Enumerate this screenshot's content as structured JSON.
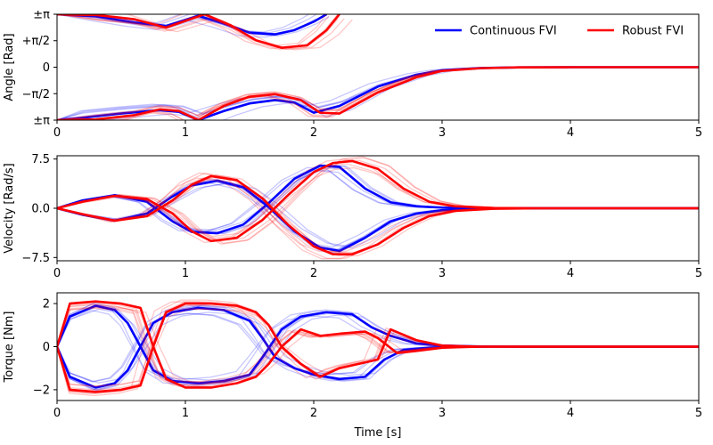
{
  "chart_data": [
    {
      "type": "line",
      "title": "",
      "xlabel": "",
      "ylabel": "Angle [Rad]",
      "xlim": [
        0,
        5
      ],
      "ylim": [
        -3.14159,
        3.14159
      ],
      "xticks": [
        0,
        1,
        2,
        3,
        4,
        5
      ],
      "xtick_labels": [
        "0",
        "1",
        "2",
        "3",
        "4",
        "5"
      ],
      "yticks": [
        3.14159,
        1.5708,
        0,
        -1.5708,
        -3.14159
      ],
      "ytick_labels": [
        "±π",
        "+π/2",
        "0",
        "−π/2",
        "±π"
      ],
      "legend": {
        "placement": "top-right",
        "entries": [
          {
            "label": "Continuous FVI",
            "color": "#0000ff"
          },
          {
            "label": "Robust FVI",
            "color": "#ff0000"
          }
        ]
      },
      "series": [
        {
          "name": "Continuous FVI – upper branch",
          "color": "#0000ff",
          "x": [
            0,
            0.3,
            0.6,
            0.85,
            1.1,
            1.3,
            1.5,
            1.7,
            1.85,
            2.0,
            2.1
          ],
          "y": [
            3.14,
            3.02,
            2.65,
            2.45,
            3.05,
            2.6,
            2.05,
            1.95,
            2.2,
            2.7,
            3.14
          ]
        },
        {
          "name": "Continuous FVI – lower branch",
          "color": "#0000ff",
          "x": [
            0,
            0.2,
            0.5,
            0.8,
            0.95,
            1.1,
            1.3,
            1.5,
            1.7,
            1.85,
            2.0,
            2.2,
            2.5,
            2.8,
            3.0,
            3.3,
            3.6,
            4.0,
            5.0
          ],
          "y": [
            -3.14,
            -3.0,
            -2.75,
            -2.55,
            -2.65,
            -3.14,
            -2.6,
            -2.15,
            -1.95,
            -2.1,
            -2.7,
            -2.3,
            -1.15,
            -0.45,
            -0.18,
            -0.05,
            -0.01,
            0,
            0
          ]
        },
        {
          "name": "Robust FVI – upper branch",
          "color": "#ff0000",
          "x": [
            0,
            0.3,
            0.6,
            0.85,
            1.15,
            1.35,
            1.55,
            1.75,
            1.95,
            2.1,
            2.2
          ],
          "y": [
            3.14,
            3.1,
            2.85,
            2.35,
            3.14,
            2.5,
            1.6,
            1.15,
            1.3,
            2.2,
            3.14
          ]
        },
        {
          "name": "Robust FVI – lower branch",
          "color": "#ff0000",
          "x": [
            0,
            0.3,
            0.6,
            0.8,
            0.95,
            1.1,
            1.3,
            1.5,
            1.7,
            1.9,
            2.05,
            2.2,
            2.5,
            2.8,
            3.0,
            3.3,
            3.6,
            4.0,
            5.0
          ],
          "y": [
            -3.14,
            -3.1,
            -2.85,
            -2.5,
            -2.6,
            -3.14,
            -2.3,
            -1.75,
            -1.6,
            -1.95,
            -2.7,
            -2.75,
            -1.5,
            -0.6,
            -0.22,
            -0.06,
            -0.01,
            0,
            0
          ]
        }
      ]
    },
    {
      "type": "line",
      "title": "",
      "xlabel": "",
      "ylabel": "Velocity [Rad/s]",
      "xlim": [
        0,
        5
      ],
      "ylim": [
        -8,
        8
      ],
      "xticks": [
        0,
        1,
        2,
        3,
        4,
        5
      ],
      "xtick_labels": [
        "0",
        "1",
        "2",
        "3",
        "4",
        "5"
      ],
      "yticks": [
        7.5,
        0,
        -7.5
      ],
      "ytick_labels": [
        "7.5",
        "0.0",
        "−7.5"
      ],
      "series": [
        {
          "name": "Continuous FVI – A",
          "color": "#0000ff",
          "x": [
            0,
            0.2,
            0.45,
            0.7,
            0.9,
            1.05,
            1.25,
            1.45,
            1.65,
            1.85,
            2.05,
            2.2,
            2.4,
            2.6,
            2.8,
            3.0,
            3.3,
            3.6,
            4.0,
            5.0
          ],
          "y": [
            0,
            1.2,
            2.0,
            1.0,
            -2.0,
            -3.6,
            -3.8,
            -2.5,
            0.8,
            4.5,
            6.5,
            6.3,
            3.0,
            0.9,
            0.3,
            0.1,
            0.02,
            0,
            0,
            0
          ]
        },
        {
          "name": "Continuous FVI – B",
          "color": "#0000ff",
          "x": [
            0,
            0.2,
            0.45,
            0.7,
            0.9,
            1.05,
            1.25,
            1.45,
            1.65,
            1.85,
            2.05,
            2.2,
            2.4,
            2.6,
            2.8,
            3.0,
            3.3,
            3.6,
            4.0,
            5.0
          ],
          "y": [
            0,
            -1.0,
            -1.9,
            -0.8,
            1.8,
            3.5,
            4.2,
            3.2,
            0.2,
            -3.5,
            -6.0,
            -6.5,
            -4.5,
            -2.0,
            -0.8,
            -0.3,
            -0.05,
            0,
            0,
            0
          ]
        },
        {
          "name": "Robust FVI – A",
          "color": "#ff0000",
          "x": [
            0,
            0.2,
            0.45,
            0.7,
            0.9,
            1.05,
            1.2,
            1.4,
            1.6,
            1.8,
            2.0,
            2.15,
            2.3,
            2.5,
            2.7,
            2.9,
            3.1,
            3.4,
            3.8,
            4.5,
            5.0
          ],
          "y": [
            0,
            1.0,
            1.9,
            1.4,
            -0.8,
            -3.5,
            -5.0,
            -4.5,
            -1.8,
            2.0,
            5.5,
            6.9,
            7.2,
            6.0,
            3.0,
            1.0,
            0.3,
            0.05,
            0,
            0,
            0
          ]
        },
        {
          "name": "Robust FVI – B",
          "color": "#ff0000",
          "x": [
            0,
            0.2,
            0.45,
            0.7,
            0.9,
            1.05,
            1.2,
            1.4,
            1.6,
            1.8,
            2.0,
            2.15,
            2.3,
            2.5,
            2.7,
            2.9,
            3.1,
            3.4,
            3.8,
            4.5,
            5.0
          ],
          "y": [
            0,
            -0.9,
            -1.9,
            -1.2,
            1.2,
            3.6,
            4.9,
            4.3,
            1.5,
            -2.5,
            -5.8,
            -7.0,
            -7.0,
            -5.5,
            -3.0,
            -1.2,
            -0.4,
            -0.08,
            0,
            0,
            0
          ]
        }
      ]
    },
    {
      "type": "line",
      "title": "",
      "xlabel": "Time [s]",
      "ylabel": "Torque [Nm]",
      "xlim": [
        0,
        5
      ],
      "ylim": [
        -2.5,
        2.5
      ],
      "xticks": [
        0,
        1,
        2,
        3,
        4,
        5
      ],
      "xtick_labels": [
        "0",
        "1",
        "2",
        "3",
        "4",
        "5"
      ],
      "yticks": [
        2,
        0,
        -2
      ],
      "ytick_labels": [
        "2",
        "0",
        "−2"
      ],
      "series": [
        {
          "name": "Continuous FVI – A",
          "color": "#0000ff",
          "x": [
            0,
            0.1,
            0.3,
            0.45,
            0.55,
            0.65,
            0.75,
            0.9,
            1.1,
            1.3,
            1.5,
            1.6,
            1.75,
            1.9,
            2.1,
            2.3,
            2.45,
            2.6,
            2.8,
            3.0,
            3.3,
            3.6,
            4.0,
            5.0
          ],
          "y": [
            0,
            1.4,
            1.9,
            1.7,
            1.1,
            0,
            -1.1,
            -1.6,
            -1.7,
            -1.6,
            -1.3,
            -0.5,
            0.8,
            1.4,
            1.6,
            1.5,
            0.9,
            0.5,
            0.15,
            0.05,
            0.01,
            0,
            0,
            0
          ]
        },
        {
          "name": "Continuous FVI – B",
          "color": "#0000ff",
          "x": [
            0,
            0.1,
            0.3,
            0.45,
            0.55,
            0.65,
            0.75,
            0.9,
            1.1,
            1.3,
            1.5,
            1.6,
            1.7,
            1.85,
            2.0,
            2.2,
            2.4,
            2.55,
            2.7,
            2.9,
            3.1,
            3.4,
            3.8,
            5.0
          ],
          "y": [
            0,
            -1.4,
            -1.9,
            -1.7,
            -1.1,
            0,
            1.1,
            1.6,
            1.8,
            1.7,
            1.2,
            0.4,
            -0.5,
            -1.0,
            -1.3,
            -1.5,
            -1.4,
            -0.6,
            -0.15,
            -0.05,
            -0.01,
            0,
            0,
            0
          ]
        },
        {
          "name": "Robust FVI – A",
          "color": "#ff0000",
          "x": [
            0,
            0.1,
            0.3,
            0.5,
            0.65,
            0.75,
            0.85,
            1.0,
            1.2,
            1.4,
            1.55,
            1.65,
            1.75,
            1.9,
            2.05,
            2.2,
            2.4,
            2.5,
            2.65,
            2.8,
            3.0,
            3.3,
            3.6,
            4.0,
            5.0
          ],
          "y": [
            0,
            2.0,
            2.1,
            2.0,
            1.8,
            0,
            -1.5,
            -1.9,
            -1.9,
            -1.7,
            -1.4,
            -0.8,
            0,
            0.8,
            0.5,
            0.6,
            0.7,
            0.4,
            -0.3,
            -0.2,
            -0.05,
            0,
            0,
            0,
            0
          ]
        },
        {
          "name": "Robust FVI – B",
          "color": "#ff0000",
          "x": [
            0,
            0.1,
            0.3,
            0.5,
            0.65,
            0.75,
            0.85,
            1.0,
            1.2,
            1.4,
            1.55,
            1.65,
            1.75,
            1.9,
            2.05,
            2.2,
            2.35,
            2.5,
            2.6,
            2.8,
            3.0,
            3.3,
            3.6,
            4.0,
            5.0
          ],
          "y": [
            0,
            -2.0,
            -2.1,
            -2.0,
            -1.8,
            0,
            1.6,
            2.0,
            2.0,
            1.9,
            1.6,
            1.0,
            0,
            -0.8,
            -1.4,
            -1.0,
            -0.8,
            -0.6,
            0.8,
            0.3,
            0.05,
            0,
            0,
            0,
            0
          ]
        }
      ]
    }
  ]
}
